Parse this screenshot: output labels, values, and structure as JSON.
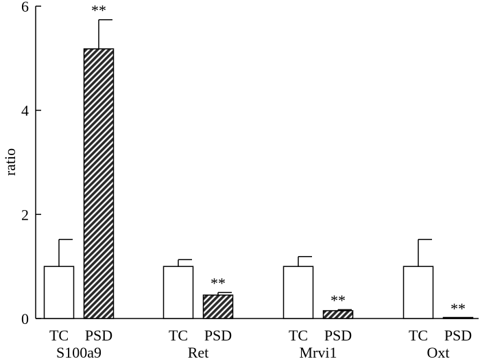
{
  "chart_data": {
    "type": "bar",
    "ylabel": "ratio",
    "ylim": [
      0,
      6
    ],
    "yticks": [
      0,
      2,
      4,
      6
    ],
    "grid": false,
    "legend": "none",
    "groups": [
      {
        "gene": "S100a9",
        "bars": [
          {
            "condition": "TC",
            "value": 1.0,
            "error": 0.52,
            "significance": ""
          },
          {
            "condition": "PSD",
            "value": 5.18,
            "error": 0.56,
            "significance": "**"
          }
        ]
      },
      {
        "gene": "Ret",
        "bars": [
          {
            "condition": "TC",
            "value": 1.0,
            "error": 0.13,
            "significance": ""
          },
          {
            "condition": "PSD",
            "value": 0.45,
            "error": 0.05,
            "significance": "**"
          }
        ]
      },
      {
        "gene": "Mrvi1",
        "bars": [
          {
            "condition": "TC",
            "value": 1.0,
            "error": 0.19,
            "significance": ""
          },
          {
            "condition": "PSD",
            "value": 0.15,
            "error": 0.02,
            "significance": "**"
          }
        ]
      },
      {
        "gene": "Oxt",
        "bars": [
          {
            "condition": "TC",
            "value": 1.0,
            "error": 0.52,
            "significance": ""
          },
          {
            "condition": "PSD",
            "value": 0.01,
            "error": 0.0,
            "significance": "**"
          }
        ]
      }
    ],
    "colors": {
      "TC": "#ffffff",
      "PSD": "#2a2a2a",
      "axis": "#000000"
    },
    "patterns": {
      "TC": "open",
      "PSD": "diagonal-hatch"
    }
  }
}
